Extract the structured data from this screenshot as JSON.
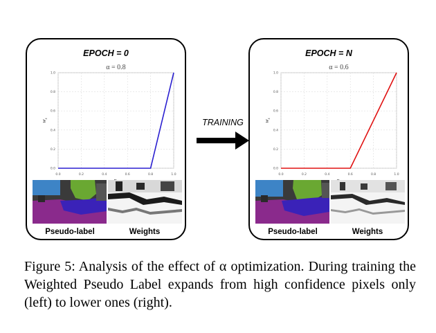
{
  "figure": {
    "panels": [
      {
        "title": "EPOCH = 0",
        "plot_title": "α = 0.8",
        "image_labels": [
          "Pseudo-label",
          "Weights"
        ]
      },
      {
        "title": "EPOCH = N",
        "plot_title": "α = 0.6",
        "image_labels": [
          "Pseudo-label",
          "Weights"
        ]
      }
    ],
    "arrow_label": "TRAINING",
    "colors": {
      "left_line": "#2a1fd0",
      "right_line": "#e01010"
    }
  },
  "chart_data": [
    {
      "type": "line",
      "title": "α = 0.8",
      "xlabel": "p_s",
      "ylabel": "w_s",
      "xlim": [
        0,
        1
      ],
      "ylim": [
        0,
        1
      ],
      "xticks": [
        "0.0",
        "0.2",
        "0.4",
        "0.6",
        "0.8",
        "1.0"
      ],
      "yticks": [
        "0.0",
        "0.2",
        "0.4",
        "0.6",
        "0.8",
        "1.0"
      ],
      "grid": true,
      "series": [
        {
          "x": [
            0,
            0.8,
            1.0
          ],
          "y": [
            0,
            0,
            1.0
          ],
          "color": "#2a1fd0"
        }
      ]
    },
    {
      "type": "line",
      "title": "α = 0.6",
      "xlabel": "p_s",
      "ylabel": "w_s",
      "xlim": [
        0,
        1
      ],
      "ylim": [
        0,
        1
      ],
      "xticks": [
        "0.0",
        "0.2",
        "0.4",
        "0.6",
        "0.8",
        "1.0"
      ],
      "yticks": [
        "0.0",
        "0.2",
        "0.4",
        "0.6",
        "0.8",
        "1.0"
      ],
      "grid": true,
      "series": [
        {
          "x": [
            0,
            0.6,
            1.0
          ],
          "y": [
            0,
            0,
            1.0
          ],
          "color": "#e01010"
        }
      ]
    }
  ],
  "caption": "Figure 5: Analysis of the effect of α optimization. During training the Weighted Pseudo Label expands from high confidence pixels only (left) to lower ones (right)."
}
